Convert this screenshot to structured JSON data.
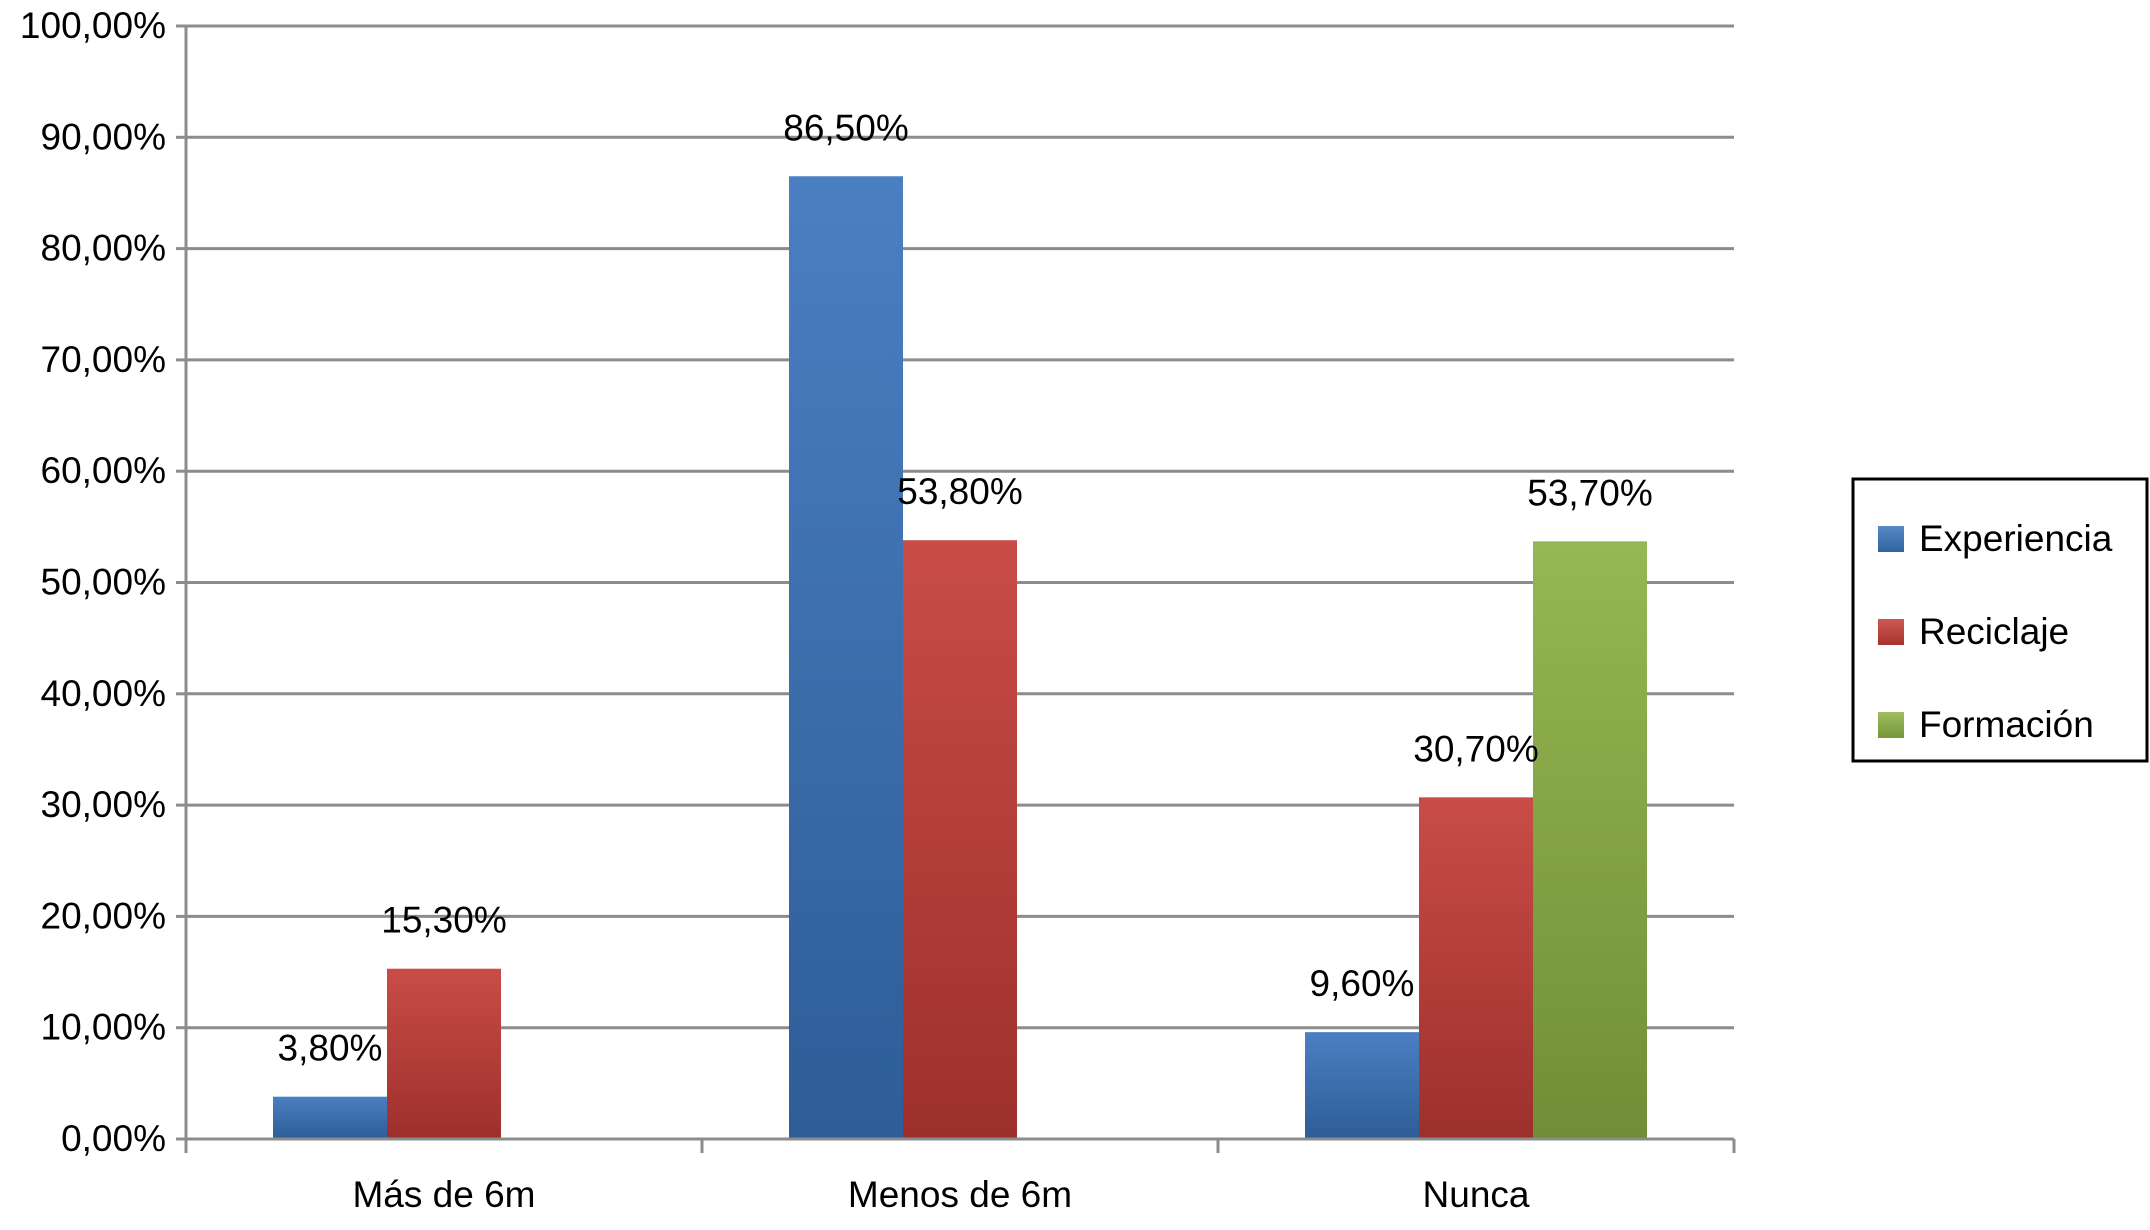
{
  "chart_data": {
    "type": "bar",
    "title": "",
    "xlabel": "",
    "ylabel": "",
    "ylim": [
      0,
      100
    ],
    "y_ticks": [
      "0,00%",
      "10,00%",
      "20,00%",
      "30,00%",
      "40,00%",
      "50,00%",
      "60,00%",
      "70,00%",
      "80,00%",
      "90,00%",
      "100,00%"
    ],
    "categories": [
      "Más de 6m",
      "Menos de 6m",
      "Nunca"
    ],
    "series": [
      {
        "name": "Experiencia",
        "color": "#3a74bd",
        "values": [
          3.8,
          86.5,
          9.6
        ],
        "labels": [
          "3,80%",
          "86,50%",
          "9,60%"
        ]
      },
      {
        "name": "Reciclaje",
        "color": "#c43c37",
        "values": [
          15.3,
          53.8,
          30.7
        ],
        "labels": [
          "15,30%",
          "53,80%",
          "30,70%"
        ]
      },
      {
        "name": "Formación",
        "color": "#8db144",
        "values": [
          null,
          null,
          53.7
        ],
        "labels": [
          "",
          "",
          "53,70%"
        ]
      }
    ],
    "grid": true,
    "legend_position": "right"
  }
}
